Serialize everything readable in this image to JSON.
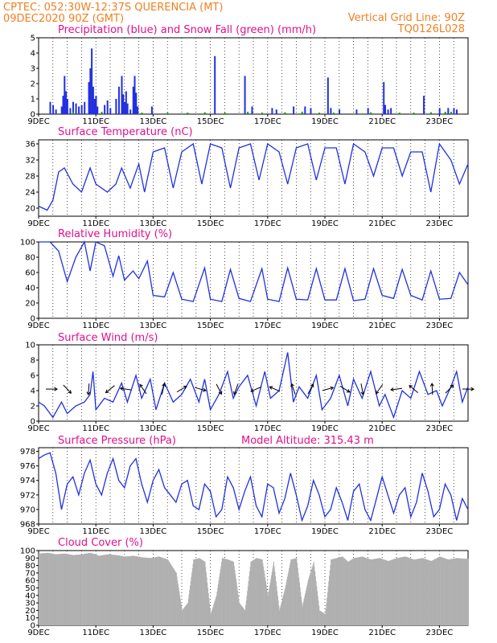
{
  "header": {
    "line1": "CPTEC:   052:30W-12:37S   QUERENCIA (MT)",
    "line2_left": "09DEC2020 90Z (GMT)",
    "line2_right": "Vertical Grid Line: 90Z",
    "code": "TQ0126L028"
  },
  "colors": {
    "header": "#f08020",
    "title": "#e0108c",
    "series": "#2030e0",
    "snow": "#00a000",
    "cloud": "#b0b0b0"
  },
  "x_ticks": [
    "9DEC",
    "11DEC",
    "13DEC",
    "15DEC",
    "17DEC",
    "19DEC",
    "21DEC",
    "23DEC"
  ],
  "chart_data": [
    {
      "type": "bar",
      "title": "Precipitation (blue) and Snow Fall (green) (mm/h)",
      "ylim": [
        0,
        5
      ],
      "yticks": [
        0,
        1,
        2,
        3,
        4,
        5
      ],
      "x_range_days": [
        9,
        24
      ],
      "series": [
        {
          "name": "Precipitation",
          "color": "#2030e0",
          "points": [
            [
              9.4,
              0.8
            ],
            [
              9.5,
              0.6
            ],
            [
              9.6,
              0.3
            ],
            [
              9.8,
              0.5
            ],
            [
              9.85,
              1.2
            ],
            [
              9.9,
              2.5
            ],
            [
              9.95,
              1.5
            ],
            [
              10.0,
              1.0
            ],
            [
              10.1,
              0.4
            ],
            [
              10.2,
              0.8
            ],
            [
              10.3,
              0.7
            ],
            [
              10.4,
              0.5
            ],
            [
              10.5,
              0.6
            ],
            [
              10.6,
              0.8
            ],
            [
              10.75,
              2.1
            ],
            [
              10.8,
              3.0
            ],
            [
              10.85,
              4.3
            ],
            [
              10.9,
              1.8
            ],
            [
              10.95,
              1.0
            ],
            [
              11.0,
              1.2
            ],
            [
              11.05,
              0.5
            ],
            [
              11.3,
              0.6
            ],
            [
              11.4,
              0.9
            ],
            [
              11.5,
              0.4
            ],
            [
              11.7,
              1.0
            ],
            [
              11.8,
              1.8
            ],
            [
              11.9,
              2.5
            ],
            [
              11.95,
              1.3
            ],
            [
              12.0,
              0.8
            ],
            [
              12.05,
              1.5
            ],
            [
              12.1,
              0.7
            ],
            [
              12.2,
              0.3
            ],
            [
              12.3,
              1.8
            ],
            [
              12.35,
              2.5
            ],
            [
              12.4,
              1.4
            ],
            [
              12.45,
              0.5
            ],
            [
              12.95,
              0.5
            ],
            [
              15.15,
              3.8
            ],
            [
              16.2,
              2.5
            ],
            [
              16.45,
              0.5
            ],
            [
              17.15,
              0.4
            ],
            [
              17.3,
              0.3
            ],
            [
              17.9,
              0.5
            ],
            [
              18.3,
              0.5
            ],
            [
              18.5,
              0.4
            ],
            [
              19.1,
              2.4
            ],
            [
              19.2,
              0.4
            ],
            [
              19.5,
              0.3
            ],
            [
              20.1,
              0.3
            ],
            [
              20.5,
              0.4
            ],
            [
              21.05,
              2.1
            ],
            [
              21.1,
              0.6
            ],
            [
              21.2,
              0.3
            ],
            [
              21.3,
              0.4
            ],
            [
              22.45,
              1.2
            ],
            [
              23.0,
              0.4
            ],
            [
              23.3,
              0.4
            ],
            [
              23.5,
              0.4
            ],
            [
              23.6,
              0.3
            ]
          ]
        },
        {
          "name": "Snow Fall",
          "color": "#00a000",
          "points": [
            [
              10.2,
              0.15
            ],
            [
              11.2,
              0.15
            ],
            [
              12.6,
              0.1
            ],
            [
              13.5,
              0.1
            ],
            [
              14.2,
              0.1
            ],
            [
              14.8,
              0.12
            ],
            [
              15.5,
              0.1
            ],
            [
              16.3,
              0.15
            ],
            [
              16.8,
              0.1
            ],
            [
              17.6,
              0.12
            ],
            [
              18.2,
              0.15
            ],
            [
              18.8,
              0.1
            ],
            [
              19.3,
              0.1
            ],
            [
              20.6,
              0.12
            ],
            [
              21.6,
              0.1
            ],
            [
              22.1,
              0.1
            ],
            [
              22.7,
              0.12
            ],
            [
              23.2,
              0.15
            ],
            [
              23.4,
              0.15
            ]
          ]
        }
      ]
    },
    {
      "type": "line",
      "title": "Surface Temperature (nC)",
      "ylim": [
        18,
        37
      ],
      "yticks": [
        20,
        24,
        28,
        32,
        36
      ],
      "x_range_days": [
        9,
        24
      ],
      "series": [
        {
          "name": "",
          "color": "#2030e0",
          "x": [
            9.0,
            9.3,
            9.5,
            9.7,
            9.9,
            10.2,
            10.5,
            10.8,
            11.0,
            11.4,
            11.7,
            11.9,
            12.2,
            12.5,
            12.7,
            13.0,
            13.4,
            13.7,
            14.0,
            14.4,
            14.7,
            15.0,
            15.4,
            15.7,
            16.0,
            16.4,
            16.7,
            17.0,
            17.4,
            17.7,
            18.0,
            18.4,
            18.7,
            19.0,
            19.4,
            19.7,
            20.0,
            20.4,
            20.7,
            21.0,
            21.4,
            21.7,
            22.0,
            22.4,
            22.7,
            23.0,
            23.4,
            23.7,
            24.0
          ],
          "y": [
            20.5,
            19.5,
            22,
            29,
            30,
            26,
            24,
            30,
            26,
            24,
            26,
            30,
            25,
            31,
            24,
            34,
            35,
            25,
            34,
            36,
            26,
            36,
            35,
            25,
            35,
            36,
            27,
            36,
            34,
            26,
            35,
            36,
            27,
            35,
            35,
            26,
            36,
            34,
            28,
            35,
            35,
            28,
            34,
            34,
            24,
            36,
            32,
            26,
            31
          ]
        }
      ]
    },
    {
      "type": "line",
      "title": "Relative Humidity (%)",
      "ylim": [
        0,
        100
      ],
      "yticks": [
        0,
        20,
        40,
        60,
        80,
        100
      ],
      "x_range_days": [
        9,
        24
      ],
      "series": [
        {
          "name": "",
          "color": "#2030e0",
          "x": [
            9.0,
            9.2,
            9.4,
            9.7,
            10.0,
            10.3,
            10.6,
            10.8,
            11.0,
            11.3,
            11.6,
            11.8,
            12.0,
            12.3,
            12.5,
            12.8,
            13.0,
            13.4,
            13.7,
            14.0,
            14.4,
            14.8,
            15.0,
            15.4,
            15.7,
            16.0,
            16.4,
            16.8,
            17.0,
            17.4,
            17.7,
            18.0,
            18.4,
            18.7,
            19.0,
            19.4,
            19.7,
            20.0,
            20.4,
            20.7,
            21.0,
            21.4,
            21.7,
            22.0,
            22.4,
            22.7,
            23.0,
            23.4,
            23.7,
            24.0
          ],
          "y": [
            100,
            100,
            100,
            88,
            48,
            80,
            100,
            62,
            100,
            95,
            55,
            82,
            50,
            62,
            52,
            75,
            30,
            28,
            60,
            25,
            22,
            66,
            25,
            22,
            64,
            26,
            22,
            65,
            25,
            22,
            66,
            25,
            24,
            65,
            24,
            24,
            65,
            23,
            25,
            65,
            30,
            26,
            64,
            30,
            24,
            62,
            25,
            26,
            60,
            44
          ]
        }
      ]
    },
    {
      "type": "line",
      "title": "Surface Wind (m/s)",
      "ylim": [
        0,
        10
      ],
      "yticks": [
        0,
        2,
        4,
        6,
        8,
        10
      ],
      "x_range_days": [
        9,
        24
      ],
      "series": [
        {
          "name": "",
          "color": "#2030e0",
          "x": [
            9.0,
            9.2,
            9.5,
            9.8,
            10.0,
            10.3,
            10.6,
            10.8,
            10.9,
            11.0,
            11.3,
            11.6,
            11.9,
            12.1,
            12.4,
            12.6,
            12.9,
            13.1,
            13.4,
            13.7,
            14.0,
            14.3,
            14.6,
            14.8,
            15.0,
            15.3,
            15.6,
            15.8,
            16.0,
            16.3,
            16.6,
            16.9,
            17.1,
            17.4,
            17.7,
            17.9,
            18.1,
            18.4,
            18.7,
            18.9,
            19.2,
            19.5,
            19.8,
            20.0,
            20.3,
            20.6,
            20.9,
            21.1,
            21.4,
            21.7,
            22.0,
            22.3,
            22.6,
            22.9,
            23.1,
            23.4,
            23.6,
            23.8,
            24.0
          ],
          "y": [
            2.5,
            2.0,
            0.5,
            2.5,
            1.0,
            2.0,
            2.5,
            3.5,
            6.5,
            1.5,
            3.0,
            2.5,
            5.0,
            2.5,
            6.0,
            3.0,
            5.5,
            1.5,
            5.0,
            2.5,
            3.5,
            5.5,
            2.5,
            5.5,
            1.5,
            3.5,
            6.5,
            3.0,
            4.5,
            6.0,
            2.0,
            6.5,
            3.0,
            4.0,
            9.0,
            2.5,
            4.5,
            3.0,
            6.0,
            1.5,
            3.0,
            6.0,
            2.0,
            5.5,
            3.0,
            6.5,
            2.0,
            3.5,
            0.5,
            4.0,
            3.0,
            6.5,
            3.5,
            4.0,
            2.0,
            4.5,
            6.5,
            2.5,
            4.5
          ]
        }
      ],
      "wind_arrows_days": [
        9.45,
        10.0,
        10.75,
        11.5,
        12.05,
        12.65,
        13.35,
        14.0,
        14.65,
        15.3,
        15.9,
        16.6,
        17.25,
        17.9,
        18.5,
        19.1,
        19.7,
        20.3,
        20.9,
        21.5,
        22.1,
        22.75,
        23.35,
        24.0
      ]
    },
    {
      "type": "line",
      "title": "Surface Pressure (hPa)",
      "annotation": "Model Altitude: 315.43 m",
      "ylim": [
        968,
        978.5
      ],
      "yticks": [
        968,
        970,
        972,
        974,
        976,
        978
      ],
      "x_range_days": [
        9,
        24
      ],
      "series": [
        {
          "name": "",
          "color": "#2030e0",
          "x": [
            9.0,
            9.2,
            9.4,
            9.6,
            9.8,
            10.0,
            10.2,
            10.4,
            10.6,
            10.8,
            11.0,
            11.2,
            11.4,
            11.6,
            11.8,
            12.0,
            12.2,
            12.4,
            12.6,
            12.8,
            13.0,
            13.2,
            13.4,
            13.6,
            13.8,
            14.0,
            14.2,
            14.4,
            14.6,
            14.8,
            15.0,
            15.2,
            15.4,
            15.6,
            15.8,
            16.0,
            16.2,
            16.4,
            16.6,
            16.8,
            17.0,
            17.2,
            17.4,
            17.6,
            17.8,
            18.0,
            18.2,
            18.4,
            18.6,
            18.8,
            19.0,
            19.2,
            19.4,
            19.6,
            19.8,
            20.0,
            20.2,
            20.4,
            20.6,
            20.8,
            21.0,
            21.2,
            21.4,
            21.6,
            21.8,
            22.0,
            22.2,
            22.4,
            22.6,
            22.8,
            23.0,
            23.2,
            23.4,
            23.6,
            23.8,
            24.0
          ],
          "y": [
            977.0,
            977.5,
            977.8,
            975.0,
            970.0,
            973.5,
            974.5,
            972.0,
            975.0,
            976.8,
            973.5,
            972.0,
            975.0,
            977.0,
            974.0,
            973.0,
            976.0,
            977.0,
            973.5,
            971.0,
            974.0,
            975.5,
            973.0,
            972.0,
            971.0,
            973.5,
            974.0,
            970.5,
            970.0,
            973.5,
            972.5,
            969.0,
            970.0,
            974.5,
            973.0,
            970.0,
            972.5,
            974.5,
            970.5,
            969.0,
            973.5,
            973.0,
            969.5,
            971.5,
            975.0,
            972.0,
            968.5,
            970.5,
            974.0,
            972.0,
            969.0,
            970.0,
            973.0,
            971.0,
            968.5,
            972.5,
            973.5,
            970.0,
            968.5,
            971.5,
            974.5,
            972.0,
            969.5,
            972.0,
            973.0,
            969.0,
            971.0,
            975.0,
            972.5,
            969.0,
            970.0,
            973.5,
            972.0,
            968.5,
            971.5,
            970.0
          ]
        }
      ]
    },
    {
      "type": "bar",
      "title": "Cloud Cover (%)",
      "ylim": [
        0,
        100
      ],
      "yticks": [
        0,
        10,
        20,
        30,
        40,
        50,
        60,
        70,
        80,
        90,
        100
      ],
      "x_range_days": [
        9,
        24
      ],
      "series": [
        {
          "name": "",
          "color": "#b0b0b0",
          "x": [
            9.0,
            9.3,
            9.6,
            9.9,
            10.2,
            10.5,
            10.8,
            11.1,
            11.4,
            11.7,
            12.0,
            12.3,
            12.6,
            12.9,
            13.2,
            13.5,
            13.8,
            14.0,
            14.2,
            14.4,
            14.6,
            14.8,
            15.0,
            15.2,
            15.4,
            15.6,
            15.8,
            16.0,
            16.2,
            16.4,
            16.6,
            16.8,
            17.0,
            17.2,
            17.4,
            17.6,
            17.8,
            18.0,
            18.2,
            18.4,
            18.6,
            18.8,
            19.0,
            19.2,
            19.4,
            19.6,
            19.8,
            20.0,
            20.3,
            20.6,
            20.9,
            21.2,
            21.5,
            21.8,
            22.1,
            22.4,
            22.7,
            23.0,
            23.3,
            23.6,
            23.9
          ],
          "y": [
            96,
            97,
            95,
            96,
            94,
            95,
            97,
            93,
            95,
            94,
            92,
            93,
            91,
            90,
            92,
            88,
            70,
            20,
            30,
            88,
            90,
            85,
            15,
            40,
            90,
            88,
            85,
            30,
            20,
            85,
            90,
            88,
            40,
            85,
            20,
            50,
            88,
            90,
            25,
            60,
            85,
            20,
            15,
            88,
            90,
            92,
            85,
            90,
            92,
            88,
            90,
            86,
            90,
            92,
            88,
            90,
            86,
            92,
            88,
            90,
            89
          ]
        }
      ]
    }
  ]
}
